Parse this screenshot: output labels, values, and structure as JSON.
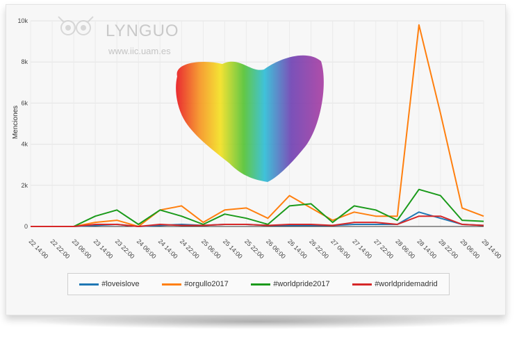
{
  "watermark": {
    "brand": "LYNGUO",
    "url": "www.iic.uam.es"
  },
  "chart_data": {
    "type": "line",
    "ylabel": "Menciones",
    "xlabel": "",
    "ylim": [
      0,
      10000
    ],
    "yticks": [
      "0",
      "2k",
      "4k",
      "6k",
      "8k",
      "10k"
    ],
    "categories": [
      "22 14:00",
      "22 22:00",
      "23 06:00",
      "23 14:00",
      "23 22:00",
      "24 06:00",
      "24 14:00",
      "24 22:00",
      "25 06:00",
      "25 14:00",
      "25 22:00",
      "26 06:00",
      "26 14:00",
      "26 22:00",
      "27 06:00",
      "27 14:00",
      "27 22:00",
      "28 06:00",
      "28 14:00",
      "28 22:00",
      "29 06:00",
      "29 14:00"
    ],
    "grid": true,
    "legend_position": "bottom",
    "series": [
      {
        "name": "#loveislove",
        "color": "#1f77b4",
        "values": [
          0,
          0,
          0,
          50,
          100,
          0,
          50,
          100,
          50,
          100,
          100,
          50,
          50,
          50,
          50,
          100,
          100,
          100,
          700,
          400,
          100,
          50
        ]
      },
      {
        "name": "#orgullo2017",
        "color": "#ff7f0e",
        "values": [
          0,
          0,
          0,
          200,
          300,
          0,
          800,
          1000,
          200,
          800,
          900,
          400,
          1500,
          900,
          300,
          700,
          500,
          500,
          9800,
          5500,
          900,
          500
        ]
      },
      {
        "name": "#worldpride2017",
        "color": "#1a9a1a",
        "values": [
          0,
          0,
          0,
          500,
          800,
          100,
          800,
          500,
          100,
          600,
          400,
          100,
          1000,
          1100,
          200,
          1000,
          800,
          300,
          1800,
          1500,
          300,
          250
        ]
      },
      {
        "name": "#worldpridemadrid",
        "color": "#d62728",
        "values": [
          0,
          0,
          0,
          100,
          100,
          0,
          100,
          50,
          50,
          100,
          100,
          50,
          100,
          100,
          50,
          200,
          200,
          100,
          500,
          500,
          100,
          50
        ]
      }
    ]
  }
}
